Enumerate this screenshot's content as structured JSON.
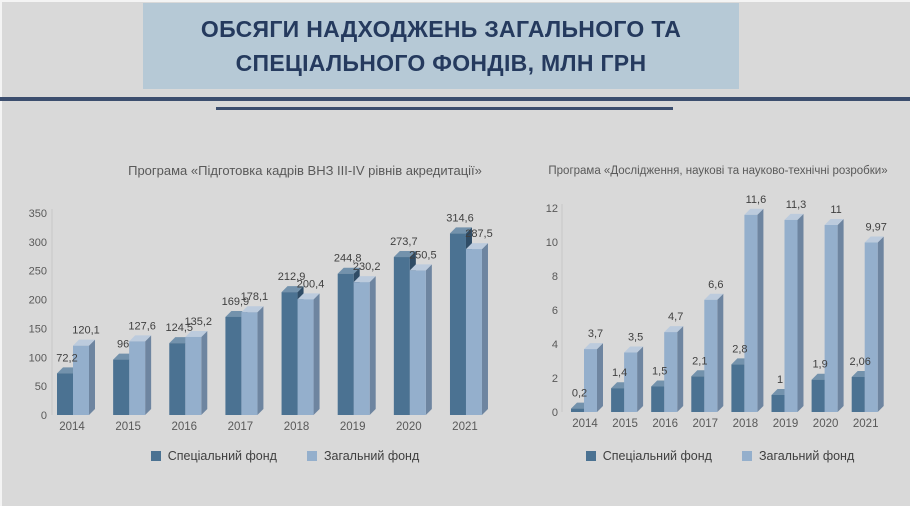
{
  "page": {
    "background": "#d9d9d9",
    "header": {
      "title": "ОБСЯГИ НАДХОДЖЕНЬ ЗАГАЛЬНОГО ТА\nСПЕЦІАЛЬНОГО ФОНДІВ, МЛН ГРН",
      "box_color": "#b6c9d6",
      "text_color": "#253a5e",
      "rule_color": "#3c4e6e"
    }
  },
  "chart_data": [
    {
      "type": "bar",
      "title": "Програма «Підготовка кадрів ВНЗ III-IV рівнів акредитації»",
      "categories": [
        "2014",
        "2015",
        "2016",
        "2017",
        "2018",
        "2019",
        "2020",
        "2021"
      ],
      "series": [
        {
          "name": "Спеціальний фонд",
          "color": "#4b7292",
          "color_top": "#7392ac",
          "color_side": "#2f4c66",
          "values": [
            72.2,
            96,
            124.5,
            169.9,
            212.9,
            244.8,
            273.7,
            314.6
          ],
          "labels": [
            "72,2",
            "96",
            "124,5",
            "169,9",
            "212,9",
            "244,8",
            "273,7",
            "314,6"
          ]
        },
        {
          "name": "Загальний фонд",
          "color": "#94afcc",
          "color_top": "#bccbdd",
          "color_side": "#6e85a0",
          "values": [
            120.1,
            127.6,
            135.2,
            178.1,
            200.4,
            230.2,
            250.5,
            287.5
          ],
          "labels": [
            "120,1",
            "127,6",
            "135,2",
            "178,1",
            "200,4",
            "230,2",
            "250,5",
            "287,5"
          ]
        }
      ],
      "ylim": [
        0,
        350
      ],
      "yticks": [
        0,
        50,
        100,
        150,
        200,
        250,
        300,
        350
      ],
      "grid": false,
      "legend_position": "bottom",
      "value_label_color": "#404040",
      "axis_label_color": "#595959"
    },
    {
      "type": "bar",
      "title": "Програма «Дослідження, наукові та науково-технічні розробки»",
      "categories": [
        "2014",
        "2015",
        "2016",
        "2017",
        "2018",
        "2019",
        "2020",
        "2021"
      ],
      "series": [
        {
          "name": "Спеціальний фонд",
          "color": "#4b7292",
          "color_top": "#7392ac",
          "color_side": "#2f4c66",
          "values": [
            0.2,
            1.4,
            1.5,
            2.1,
            2.8,
            1,
            1.9,
            2.06
          ],
          "labels": [
            "0,2",
            "1,4",
            "1,5",
            "2,1",
            "2,8",
            "1",
            "1,9",
            "2,06"
          ]
        },
        {
          "name": "Загальний фонд",
          "color": "#94afcc",
          "color_top": "#bccbdd",
          "color_side": "#6e85a0",
          "values": [
            3.7,
            3.5,
            4.7,
            6.6,
            11.6,
            11.3,
            11,
            9.97
          ],
          "labels": [
            "3,7",
            "3,5",
            "4,7",
            "6,6",
            "11,6",
            "11,3",
            "11",
            "9,97"
          ]
        }
      ],
      "ylim": [
        0,
        12
      ],
      "yticks": [
        0,
        2,
        4,
        6,
        8,
        10,
        12
      ],
      "grid": false,
      "legend_position": "bottom",
      "value_label_color": "#404040",
      "axis_label_color": "#595959"
    }
  ]
}
